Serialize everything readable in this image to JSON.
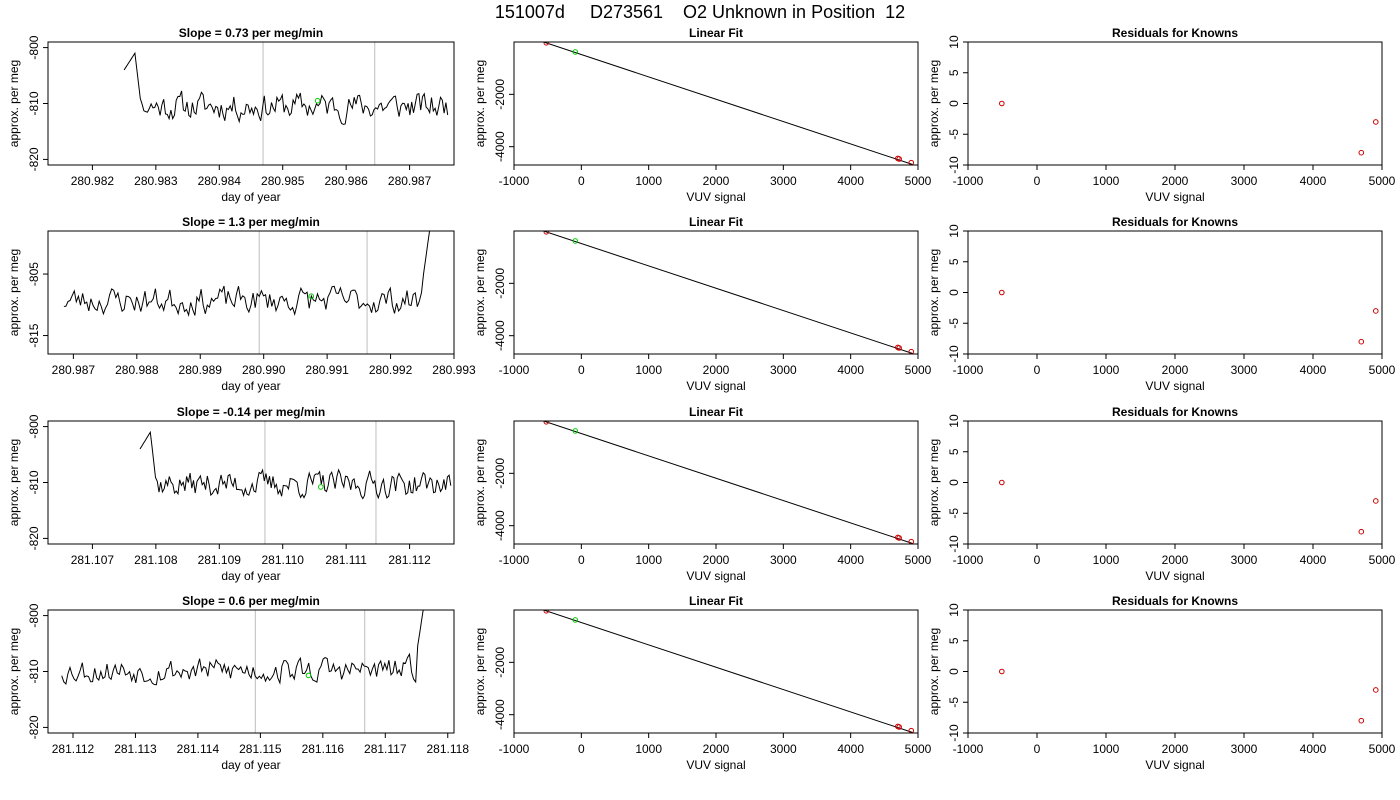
{
  "figure": {
    "title": "151007d     D273561    O2 Unknown in Position  12"
  },
  "chart_data": [
    {
      "type": "line",
      "panel": "timeseries",
      "row": 0,
      "title": "Slope =  0.73  per meg/min",
      "xlabel": "day of year",
      "ylabel": "approx. per meg",
      "xlim": [
        280.9813,
        280.9877
      ],
      "ylim": [
        -821,
        -799
      ],
      "xticks": [
        280.982,
        280.983,
        280.984,
        280.985,
        280.986,
        280.987
      ],
      "xtick_labels": [
        "280.982",
        "280.983",
        "280.984",
        "280.985",
        "280.986",
        "280.987"
      ],
      "yticks": [
        -820,
        -810,
        -800
      ],
      "ytick_labels": [
        "-820",
        "-810",
        "-800"
      ],
      "series": [
        {
          "x_start": 280.9825,
          "x_end": 280.9876,
          "base": -810.5,
          "amplitude": 2.8,
          "spike": "start",
          "seed": 11
        }
      ],
      "markers": [
        {
          "x": 280.98555,
          "y": -809.5,
          "color": "#00cc00"
        }
      ],
      "vlines": [
        280.98469,
        280.98645
      ]
    },
    {
      "type": "line",
      "panel": "linear_fit",
      "row": 0,
      "title": "Linear Fit",
      "xlabel": "VUV signal",
      "ylabel": "approx. per meg",
      "xlim": [
        -1000,
        5000
      ],
      "ylim": [
        -4700,
        0
      ],
      "xticks": [
        -1000,
        0,
        1000,
        2000,
        3000,
        4000,
        5000
      ],
      "xtick_labels": [
        "-1000",
        "0",
        "1000",
        "2000",
        "3000",
        "4000",
        "5000"
      ],
      "yticks": [
        -4000,
        -2000
      ],
      "ytick_labels": [
        "-4000",
        "-2000"
      ],
      "fit_line": {
        "x": [
          -830,
          4920
        ],
        "y": [
          230,
          -4680
        ]
      },
      "points": [
        {
          "x": -520,
          "y": -30,
          "color": "#cc0000"
        },
        {
          "x": -90,
          "y": -380,
          "color": "#00cc00"
        },
        {
          "x": 4700,
          "y": -4450,
          "color": "#cc0000"
        },
        {
          "x": 4720,
          "y": -4470,
          "color": "#cc0000"
        },
        {
          "x": 4900,
          "y": -4610,
          "color": "#cc0000"
        }
      ]
    },
    {
      "type": "scatter",
      "panel": "residuals",
      "row": 0,
      "title": "Residuals for Knowns",
      "xlabel": "VUV signal",
      "ylabel": "approx. per meg",
      "xlim": [
        -1000,
        5000
      ],
      "ylim": [
        -10,
        10
      ],
      "xticks": [
        -1000,
        0,
        1000,
        2000,
        3000,
        4000,
        5000
      ],
      "xtick_labels": [
        "-1000",
        "0",
        "1000",
        "2000",
        "3000",
        "4000",
        "5000"
      ],
      "yticks": [
        -10,
        -5,
        0,
        5,
        10
      ],
      "ytick_labels": [
        "-10",
        "-5",
        "0",
        "5",
        "10"
      ],
      "points": [
        {
          "x": -510,
          "y": 0,
          "color": "#cc0000"
        },
        {
          "x": 4700,
          "y": -8,
          "color": "#cc0000"
        },
        {
          "x": 4910,
          "y": -3,
          "color": "#cc0000"
        }
      ]
    },
    {
      "type": "line",
      "panel": "timeseries",
      "row": 1,
      "title": "Slope =  1.3  per meg/min",
      "xlabel": "day of year",
      "ylabel": "approx. per meg",
      "xlim": [
        280.9866,
        280.993
      ],
      "ylim": [
        -818,
        -798
      ],
      "xticks": [
        280.987,
        280.988,
        280.989,
        280.99,
        280.991,
        280.992,
        280.993
      ],
      "xtick_labels": [
        "280.987",
        "280.988",
        "280.989",
        "280.990",
        "280.991",
        "280.992",
        "280.993"
      ],
      "yticks": [
        -815,
        -805
      ],
      "ytick_labels": [
        "-815",
        "-805"
      ],
      "series": [
        {
          "x_start": 280.98685,
          "x_end": 280.99275,
          "base": -809.3,
          "amplitude": 2.5,
          "spike": "end",
          "seed": 23
        }
      ],
      "markers": [
        {
          "x": 280.99075,
          "y": -808.6,
          "color": "#00cc00"
        }
      ],
      "vlines": [
        280.98993,
        280.99163
      ]
    },
    {
      "type": "line",
      "panel": "linear_fit",
      "row": 1,
      "title": "Linear Fit",
      "xlabel": "VUV signal",
      "ylabel": "approx. per meg",
      "xlim": [
        -1000,
        5000
      ],
      "ylim": [
        -4700,
        0
      ],
      "xticks": [
        -1000,
        0,
        1000,
        2000,
        3000,
        4000,
        5000
      ],
      "xtick_labels": [
        "-1000",
        "0",
        "1000",
        "2000",
        "3000",
        "4000",
        "5000"
      ],
      "yticks": [
        -4000,
        -2000
      ],
      "ytick_labels": [
        "-4000",
        "-2000"
      ],
      "fit_line": {
        "x": [
          -830,
          4920
        ],
        "y": [
          230,
          -4680
        ]
      },
      "points": [
        {
          "x": -520,
          "y": -30,
          "color": "#cc0000"
        },
        {
          "x": -90,
          "y": -380,
          "color": "#00cc00"
        },
        {
          "x": 4700,
          "y": -4450,
          "color": "#cc0000"
        },
        {
          "x": 4720,
          "y": -4470,
          "color": "#cc0000"
        },
        {
          "x": 4900,
          "y": -4610,
          "color": "#cc0000"
        }
      ]
    },
    {
      "type": "scatter",
      "panel": "residuals",
      "row": 1,
      "title": "Residuals for Knowns",
      "xlabel": "VUV signal",
      "ylabel": "approx. per meg",
      "xlim": [
        -1000,
        5000
      ],
      "ylim": [
        -10,
        10
      ],
      "xticks": [
        -1000,
        0,
        1000,
        2000,
        3000,
        4000,
        5000
      ],
      "xtick_labels": [
        "-1000",
        "0",
        "1000",
        "2000",
        "3000",
        "4000",
        "5000"
      ],
      "yticks": [
        -10,
        -5,
        0,
        5,
        10
      ],
      "ytick_labels": [
        "-10",
        "-5",
        "0",
        "5",
        "10"
      ],
      "points": [
        {
          "x": -510,
          "y": 0,
          "color": "#cc0000"
        },
        {
          "x": 4700,
          "y": -8,
          "color": "#cc0000"
        },
        {
          "x": 4910,
          "y": -3,
          "color": "#cc0000"
        }
      ]
    },
    {
      "type": "line",
      "panel": "timeseries",
      "row": 2,
      "title": "Slope =  -0.14  per meg/min",
      "xlabel": "day of year",
      "ylabel": "approx. per meg",
      "xlim": [
        281.1063,
        281.1127
      ],
      "ylim": [
        -821,
        -799
      ],
      "xticks": [
        281.107,
        281.108,
        281.109,
        281.11,
        281.111,
        281.112
      ],
      "xtick_labels": [
        "281.107",
        "281.108",
        "281.109",
        "281.110",
        "281.111",
        "281.112"
      ],
      "yticks": [
        -820,
        -810,
        -800
      ],
      "ytick_labels": [
        "-820",
        "-810",
        "-800"
      ],
      "series": [
        {
          "x_start": 281.10775,
          "x_end": 281.11265,
          "base": -810.3,
          "amplitude": 2.6,
          "spike": "start",
          "seed": 37
        }
      ],
      "markers": [
        {
          "x": 281.1106,
          "y": -810.8,
          "color": "#00cc00"
        }
      ],
      "vlines": [
        281.10972,
        281.11147
      ]
    },
    {
      "type": "line",
      "panel": "linear_fit",
      "row": 2,
      "title": "Linear Fit",
      "xlabel": "VUV signal",
      "ylabel": "approx. per meg",
      "xlim": [
        -1000,
        5000
      ],
      "ylim": [
        -4700,
        0
      ],
      "xticks": [
        -1000,
        0,
        1000,
        2000,
        3000,
        4000,
        5000
      ],
      "xtick_labels": [
        "-1000",
        "0",
        "1000",
        "2000",
        "3000",
        "4000",
        "5000"
      ],
      "yticks": [
        -4000,
        -2000
      ],
      "ytick_labels": [
        "-4000",
        "-2000"
      ],
      "fit_line": {
        "x": [
          -830,
          4920
        ],
        "y": [
          230,
          -4680
        ]
      },
      "points": [
        {
          "x": -520,
          "y": -30,
          "color": "#cc0000"
        },
        {
          "x": -90,
          "y": -380,
          "color": "#00cc00"
        },
        {
          "x": 4700,
          "y": -4450,
          "color": "#cc0000"
        },
        {
          "x": 4720,
          "y": -4470,
          "color": "#cc0000"
        },
        {
          "x": 4900,
          "y": -4610,
          "color": "#cc0000"
        }
      ]
    },
    {
      "type": "scatter",
      "panel": "residuals",
      "row": 2,
      "title": "Residuals for Knowns",
      "xlabel": "VUV signal",
      "ylabel": "approx. per meg",
      "xlim": [
        -1000,
        5000
      ],
      "ylim": [
        -10,
        10
      ],
      "xticks": [
        -1000,
        0,
        1000,
        2000,
        3000,
        4000,
        5000
      ],
      "xtick_labels": [
        "-1000",
        "0",
        "1000",
        "2000",
        "3000",
        "4000",
        "5000"
      ],
      "yticks": [
        -10,
        -5,
        0,
        5,
        10
      ],
      "ytick_labels": [
        "-10",
        "-5",
        "0",
        "5",
        "10"
      ],
      "points": [
        {
          "x": -510,
          "y": 0,
          "color": "#cc0000"
        },
        {
          "x": 4700,
          "y": -8,
          "color": "#cc0000"
        },
        {
          "x": 4910,
          "y": -3,
          "color": "#cc0000"
        }
      ]
    },
    {
      "type": "line",
      "panel": "timeseries",
      "row": 3,
      "title": "Slope =  0.6  per meg/min",
      "xlabel": "day of year",
      "ylabel": "approx. per meg",
      "xlim": [
        281.1116,
        281.1181
      ],
      "ylim": [
        -821,
        -799
      ],
      "xticks": [
        281.112,
        281.113,
        281.114,
        281.115,
        281.116,
        281.117,
        281.118
      ],
      "xtick_labels": [
        "281.112",
        "281.113",
        "281.114",
        "281.115",
        "281.116",
        "281.117",
        "281.118"
      ],
      "yticks": [
        -820,
        -810,
        -800
      ],
      "ytick_labels": [
        "-820",
        "-810",
        "-800"
      ],
      "series": [
        {
          "x_start": 281.11182,
          "x_end": 281.11775,
          "base": -809.8,
          "amplitude": 2.6,
          "spike": "end",
          "seed": 53
        }
      ],
      "markers": [
        {
          "x": 281.11577,
          "y": -810.7,
          "color": "#00cc00"
        }
      ],
      "vlines": [
        281.11492,
        281.11667
      ]
    },
    {
      "type": "line",
      "panel": "linear_fit",
      "row": 3,
      "title": "Linear Fit",
      "xlabel": "VUV signal",
      "ylabel": "approx. per meg",
      "xlim": [
        -1000,
        5000
      ],
      "ylim": [
        -4700,
        0
      ],
      "xticks": [
        -1000,
        0,
        1000,
        2000,
        3000,
        4000,
        5000
      ],
      "xtick_labels": [
        "-1000",
        "0",
        "1000",
        "2000",
        "3000",
        "4000",
        "5000"
      ],
      "yticks": [
        -4000,
        -2000
      ],
      "ytick_labels": [
        "-4000",
        "-2000"
      ],
      "fit_line": {
        "x": [
          -830,
          4920
        ],
        "y": [
          230,
          -4680
        ]
      },
      "points": [
        {
          "x": -520,
          "y": -30,
          "color": "#cc0000"
        },
        {
          "x": -90,
          "y": -380,
          "color": "#00cc00"
        },
        {
          "x": 4700,
          "y": -4450,
          "color": "#cc0000"
        },
        {
          "x": 4720,
          "y": -4470,
          "color": "#cc0000"
        },
        {
          "x": 4900,
          "y": -4610,
          "color": "#cc0000"
        }
      ]
    },
    {
      "type": "scatter",
      "panel": "residuals",
      "row": 3,
      "title": "Residuals for Knowns",
      "xlabel": "VUV signal",
      "ylabel": "approx. per meg",
      "xlim": [
        -1000,
        5000
      ],
      "ylim": [
        -10,
        10
      ],
      "xticks": [
        -1000,
        0,
        1000,
        2000,
        3000,
        4000,
        5000
      ],
      "xtick_labels": [
        "-1000",
        "0",
        "1000",
        "2000",
        "3000",
        "4000",
        "5000"
      ],
      "yticks": [
        -10,
        -5,
        0,
        5,
        10
      ],
      "ytick_labels": [
        "-10",
        "-5",
        "0",
        "5",
        "10"
      ],
      "points": [
        {
          "x": -510,
          "y": 0,
          "color": "#cc0000"
        },
        {
          "x": 4700,
          "y": -8,
          "color": "#cc0000"
        },
        {
          "x": 4910,
          "y": -3,
          "color": "#cc0000"
        }
      ]
    }
  ],
  "colors": {
    "line": "#000000",
    "unknown": "#00cc00",
    "known": "#cc0000",
    "vline": "#c8c8c8"
  }
}
